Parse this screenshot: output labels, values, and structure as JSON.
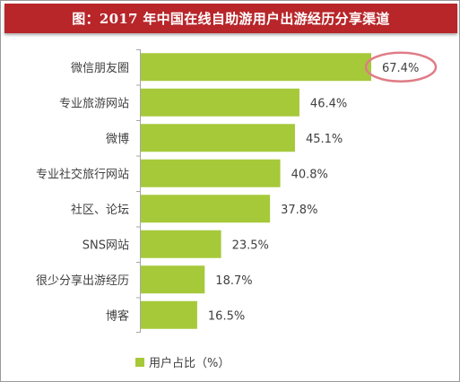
{
  "title": "图：2017 年中国在线自助游用户出游经历分享渠道",
  "colors": {
    "title_bg": "#b8262a",
    "bar": "#a6c93a",
    "highlight": "#e07c86",
    "axis": "#a6a6a6",
    "text": "#404040"
  },
  "chart_data": {
    "type": "bar",
    "orientation": "horizontal",
    "categories": [
      "微信朋友圈",
      "专业旅游网站",
      "微博",
      "专业社交旅行网站",
      "社区、论坛",
      "SNS网站",
      "很少分享出游经历",
      "博客"
    ],
    "values": [
      67.4,
      46.4,
      45.1,
      40.8,
      37.8,
      23.5,
      18.7,
      16.5
    ],
    "value_labels": [
      "67.4%",
      "46.4%",
      "45.1%",
      "40.8%",
      "37.8%",
      "23.5%",
      "18.7%",
      "16.5%"
    ],
    "series": [
      {
        "name": "用户占比（%）",
        "values": [
          67.4,
          46.4,
          45.1,
          40.8,
          37.8,
          23.5,
          18.7,
          16.5
        ]
      }
    ],
    "highlighted_category": "微信朋友圈",
    "legend_position": "bottom",
    "grid": false,
    "xlim": [
      0,
      67.4
    ]
  }
}
